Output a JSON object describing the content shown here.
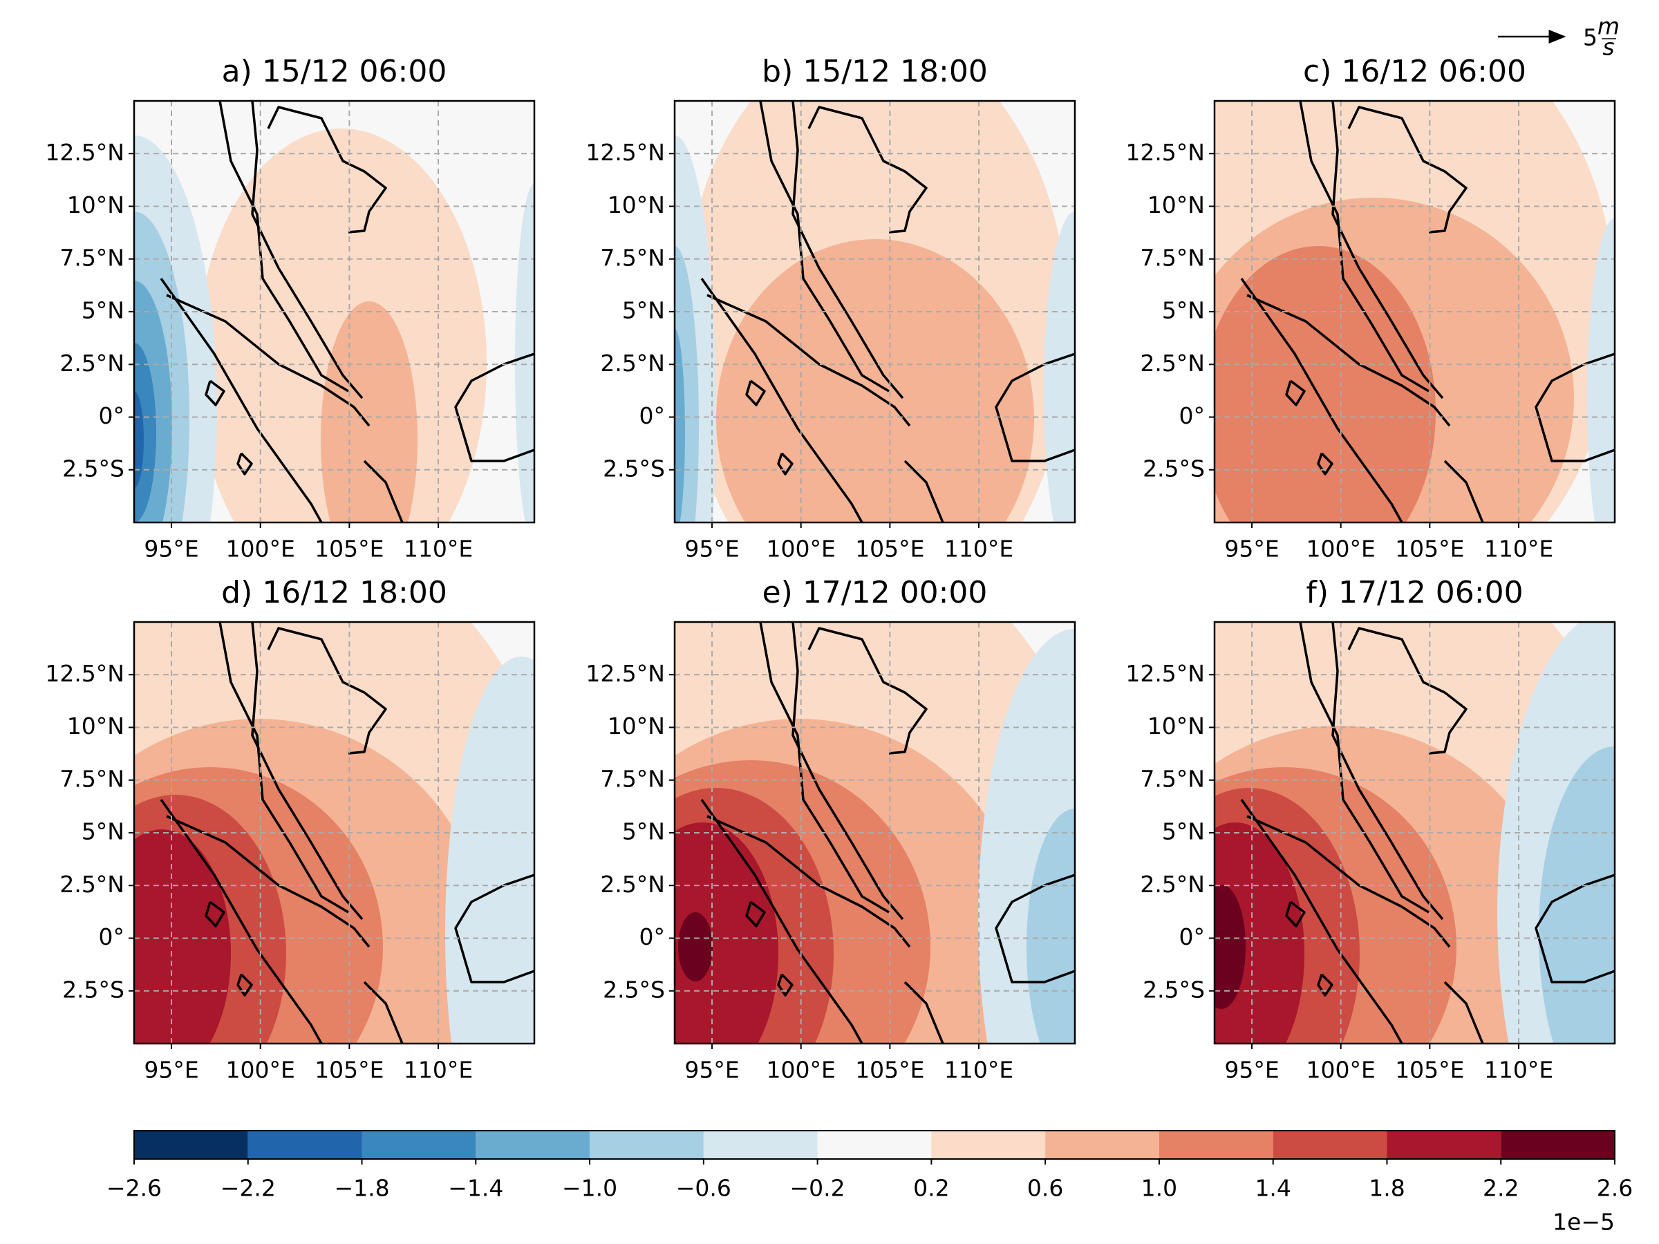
{
  "chart_data": [
    {
      "type": "map",
      "title": "a) 15/12 06:00",
      "xlim": [
        92.9,
        115.4
      ],
      "ylim": [
        -5,
        15
      ],
      "xticks": [
        {
          "value": 95,
          "label": "95°E"
        },
        {
          "value": 100,
          "label": "100°E"
        },
        {
          "value": 105,
          "label": "105°E"
        },
        {
          "value": 110,
          "label": "110°E"
        }
      ],
      "yticks": [
        {
          "value": 12.5,
          "label": "12.5°N"
        },
        {
          "value": 10,
          "label": "10°N"
        },
        {
          "value": 7.5,
          "label": "7.5°N"
        },
        {
          "value": 5,
          "label": "5°N"
        },
        {
          "value": 2.5,
          "label": "2.5°N"
        },
        {
          "value": 0,
          "label": "0°"
        },
        {
          "value": -2.5,
          "label": "2.5°S"
        }
      ],
      "grid": true
    },
    {
      "type": "map",
      "title": "b) 15/12 18:00",
      "xlim": [
        92.9,
        115.4
      ],
      "ylim": [
        -5,
        15
      ],
      "xticks": [
        {
          "value": 95,
          "label": "95°E"
        },
        {
          "value": 100,
          "label": "100°E"
        },
        {
          "value": 105,
          "label": "105°E"
        },
        {
          "value": 110,
          "label": "110°E"
        }
      ],
      "yticks": [
        {
          "value": 12.5,
          "label": "12.5°N"
        },
        {
          "value": 10,
          "label": "10°N"
        },
        {
          "value": 7.5,
          "label": "7.5°N"
        },
        {
          "value": 5,
          "label": "5°N"
        },
        {
          "value": 2.5,
          "label": "2.5°N"
        },
        {
          "value": 0,
          "label": "0°"
        },
        {
          "value": -2.5,
          "label": "2.5°S"
        }
      ],
      "grid": true
    },
    {
      "type": "map",
      "title": "c) 16/12 06:00",
      "xlim": [
        92.9,
        115.4
      ],
      "ylim": [
        -5,
        15
      ],
      "xticks": [
        {
          "value": 95,
          "label": "95°E"
        },
        {
          "value": 100,
          "label": "100°E"
        },
        {
          "value": 105,
          "label": "105°E"
        },
        {
          "value": 110,
          "label": "110°E"
        }
      ],
      "yticks": [
        {
          "value": 12.5,
          "label": "12.5°N"
        },
        {
          "value": 10,
          "label": "10°N"
        },
        {
          "value": 7.5,
          "label": "7.5°N"
        },
        {
          "value": 5,
          "label": "5°N"
        },
        {
          "value": 2.5,
          "label": "2.5°N"
        },
        {
          "value": 0,
          "label": "0°"
        },
        {
          "value": -2.5,
          "label": "2.5°S"
        }
      ],
      "grid": true
    },
    {
      "type": "map",
      "title": "d) 16/12 18:00",
      "xlim": [
        92.9,
        115.4
      ],
      "ylim": [
        -5,
        15
      ],
      "xticks": [
        {
          "value": 95,
          "label": "95°E"
        },
        {
          "value": 100,
          "label": "100°E"
        },
        {
          "value": 105,
          "label": "105°E"
        },
        {
          "value": 110,
          "label": "110°E"
        }
      ],
      "yticks": [
        {
          "value": 12.5,
          "label": "12.5°N"
        },
        {
          "value": 10,
          "label": "10°N"
        },
        {
          "value": 7.5,
          "label": "7.5°N"
        },
        {
          "value": 5,
          "label": "5°N"
        },
        {
          "value": 2.5,
          "label": "2.5°N"
        },
        {
          "value": 0,
          "label": "0°"
        },
        {
          "value": -2.5,
          "label": "2.5°S"
        }
      ],
      "grid": true
    },
    {
      "type": "map",
      "title": "e) 17/12 00:00",
      "xlim": [
        92.9,
        115.4
      ],
      "ylim": [
        -5,
        15
      ],
      "xticks": [
        {
          "value": 95,
          "label": "95°E"
        },
        {
          "value": 100,
          "label": "100°E"
        },
        {
          "value": 105,
          "label": "105°E"
        },
        {
          "value": 110,
          "label": "110°E"
        }
      ],
      "yticks": [
        {
          "value": 12.5,
          "label": "12.5°N"
        },
        {
          "value": 10,
          "label": "10°N"
        },
        {
          "value": 7.5,
          "label": "7.5°N"
        },
        {
          "value": 5,
          "label": "5°N"
        },
        {
          "value": 2.5,
          "label": "2.5°N"
        },
        {
          "value": 0,
          "label": "0°"
        },
        {
          "value": -2.5,
          "label": "2.5°S"
        }
      ],
      "grid": true
    },
    {
      "type": "map",
      "title": "f) 17/12 06:00",
      "xlim": [
        92.9,
        115.4
      ],
      "ylim": [
        -5,
        15
      ],
      "xticks": [
        {
          "value": 95,
          "label": "95°E"
        },
        {
          "value": 100,
          "label": "100°E"
        },
        {
          "value": 105,
          "label": "105°E"
        },
        {
          "value": 110,
          "label": "110°E"
        }
      ],
      "yticks": [
        {
          "value": 12.5,
          "label": "12.5°N"
        },
        {
          "value": 10,
          "label": "10°N"
        },
        {
          "value": 7.5,
          "label": "7.5°N"
        },
        {
          "value": 5,
          "label": "5°N"
        },
        {
          "value": 2.5,
          "label": "2.5°N"
        },
        {
          "value": 0,
          "label": "0°"
        },
        {
          "value": -2.5,
          "label": "2.5°S"
        }
      ],
      "grid": true
    }
  ],
  "colorbar": {
    "lim": [
      -2.6,
      2.6
    ],
    "ticks": [
      {
        "value": -2.6,
        "label": "−2.6"
      },
      {
        "value": -2.2,
        "label": "−2.2"
      },
      {
        "value": -1.8,
        "label": "−1.8"
      },
      {
        "value": -1.4,
        "label": "−1.4"
      },
      {
        "value": -1.0,
        "label": "−1.0"
      },
      {
        "value": -0.6,
        "label": "−0.6"
      },
      {
        "value": -0.2,
        "label": "−0.2"
      },
      {
        "value": 0.2,
        "label": "0.2"
      },
      {
        "value": 0.6,
        "label": "0.6"
      },
      {
        "value": 1.0,
        "label": "1.0"
      },
      {
        "value": 1.4,
        "label": "1.4"
      },
      {
        "value": 1.8,
        "label": "1.8"
      },
      {
        "value": 2.2,
        "label": "2.2"
      },
      {
        "value": 2.6,
        "label": "2.6"
      }
    ],
    "colors": [
      "#053061",
      "#2166ac",
      "#3a87bd",
      "#6aacd0",
      "#a6cfe4",
      "#d6e7f0",
      "#f7f7f7",
      "#fadcc8",
      "#f4b394",
      "#e58165",
      "#cc4c44",
      "#a8172b",
      "#6a011f"
    ],
    "offset_label": "1e−5"
  },
  "quiver_key": {
    "value": 5,
    "unit_numerator": "m",
    "unit_denominator": "s"
  }
}
